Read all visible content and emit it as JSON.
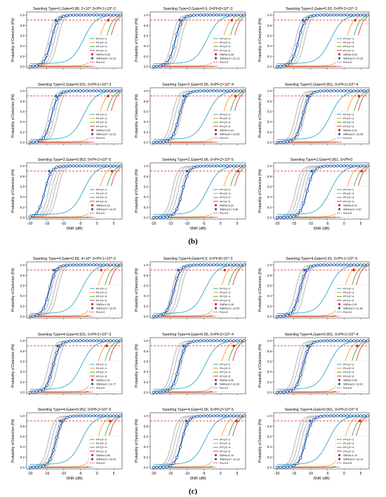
{
  "figure": {
    "caption_b": "(b)",
    "caption_c": "(c)",
    "xlabel": "SNR (dB)",
    "ylabel": "Probability of Detection (Pd)",
    "xticks": [
      -20,
      -15,
      -10,
      -5,
      0,
      5
    ],
    "yticks": [
      0.0,
      0.2,
      0.4,
      0.6,
      0.8,
      1.0
    ]
  },
  "colors": {
    "pfa_1e2": "#1f9bbd",
    "pfa_1e3": "#ff8c1a",
    "pfa_1e4": "#2ca02c",
    "pfa_1e5": "#d62728",
    "ours": "#1f5fb4",
    "gray": "#c4c4c4",
    "ref": "#e02020",
    "axis": "#333333"
  },
  "legend": {
    "pfa_1e2": "Pf=10^-2",
    "pfa_1e3": "Pf=10^-3",
    "pfa_1e4": "Pf=10^-4",
    "pfa_1e5": "Pf=10^-5",
    "pd_ref": "Pd=0.9"
  },
  "chart_data": [
    {
      "type": "line",
      "title": "Swerling Type=2,Gate=0.89, 2×10^-3<Pf<1×10^-2",
      "snr_ref": "SNRd=3.38",
      "snr_ours": "SNRours=-12.32"
    },
    {
      "type": "line",
      "title": "Swerling Type=2,Gate=0.9, 0<Pf<8×10^-3",
      "snr_ref": "SNRd=3.38",
      "snr_ours": "SNRours=-12.13"
    },
    {
      "type": "line",
      "title": "Swerling Type=2,Gate=0.93, 0<Pf<2×10^-3",
      "snr_ref": "SNRd=3.33",
      "snr_ours": "SNRours=-12.26"
    },
    {
      "type": "line",
      "title": "Swerling Type=2,Gate=0.931, 0<Pf<1×10^-3",
      "snr_ref": "SNRd=3.33",
      "snr_ours": "SNRours=-12.23"
    },
    {
      "type": "line",
      "title": "Swerling Type=2,Gate=0.95, 0<Pf<2×10^-4",
      "snr_ref": "SNRd=4.44",
      "snr_ours": "SNRours=-10.95"
    },
    {
      "type": "line",
      "title": "Swerling Type=2,Gate=0.951, 0<Pf<1×10^-4",
      "snr_ref": "SNRd=4.44",
      "snr_ours": "SNRours=-10.95"
    },
    {
      "type": "line",
      "title": "Swerling Type=2,Gate=0.952, 0<Pf<2×10^-5",
      "snr_ref": "SNRd=4.44",
      "snr_ours": "SNRours=-14.24"
    },
    {
      "type": "line",
      "title": "Swerling Type=2,Gate=0.96, 0<Pf<2×10^-5",
      "snr_ref": "SNRd=5.23",
      "snr_ours": "SNRours=-9.98"
    },
    {
      "type": "line",
      "title": "Swerling Type=2,Gate=0.961, 0<Pf<0",
      "snr_ref": "SNRd=5.23",
      "snr_ours": "SNRours=-9.67"
    },
    {
      "type": "line",
      "title": "Swerling Type=4,Gate=0.89, 4×10^-3<Pf<1×10^-2",
      "snr_ref": "SNRd=1.26",
      "snr_ours": "SNRours=-12.90"
    },
    {
      "type": "line",
      "title": "Swerling Type=4,Gate=0.9, 0<Pf<8×10^-3",
      "snr_ref": "SNRd=1.26",
      "snr_ours": "SNRours=-12.60"
    },
    {
      "type": "line",
      "title": "Swerling Type=4,Gate=0.93, 0<Pf<1×10^-3",
      "snr_ref": "SNRd=2.91",
      "snr_ours": "SNRours=-11.82"
    },
    {
      "type": "line",
      "title": "Swerling Type=4,Gate=0.931, 0<Pf<1×10^-3",
      "snr_ref": "SNRd=2.91",
      "snr_ours": "SNRours=-11.77"
    },
    {
      "type": "line",
      "title": "Swerling Type=4,Gate=0.95, 0<Pf<2×10^-4",
      "snr_ref": "SNRd=3.96",
      "snr_ours": "SNRours=-11.00"
    },
    {
      "type": "line",
      "title": "Swerling Type=4,Gate=0.951, 0<Pf<1×10^-4",
      "snr_ref": "SNRd=3.96",
      "snr_ours": "SNRours=-10.91"
    },
    {
      "type": "line",
      "title": "Swerling Type=4,Gate=0.952, 0<Pf<2×10^-5",
      "snr_ref": "SNRd=3.96",
      "snr_ours": "SNRours=-10.92"
    },
    {
      "type": "line",
      "title": "Swerling Type=4,Gate=0.96, 0<Pf<2×10^-5",
      "snr_ref": "SNRd=4.76",
      "snr_ours": "SNRours=-10.18"
    },
    {
      "type": "line",
      "title": "Swerling Type=4,Gate=0.961, 0<Pf<2×10^-5",
      "snr_ref": "SNRd=4.76",
      "snr_ours": "SNRours=-10.10"
    }
  ]
}
